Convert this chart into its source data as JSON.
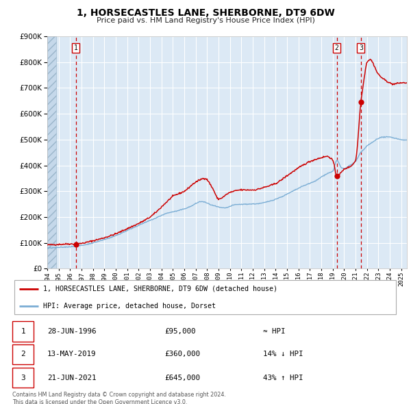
{
  "title": "1, HORSECASTLES LANE, SHERBORNE, DT9 6DW",
  "subtitle": "Price paid vs. HM Land Registry's House Price Index (HPI)",
  "legend_line1": "1, HORSECASTLES LANE, SHERBORNE, DT9 6DW (detached house)",
  "legend_line2": "HPI: Average price, detached house, Dorset",
  "sale1_date": "28-JUN-1996",
  "sale1_price": 95000,
  "sale1_hpi": "≈ HPI",
  "sale2_date": "13-MAY-2019",
  "sale2_price": 360000,
  "sale2_hpi": "14% ↓ HPI",
  "sale3_date": "21-JUN-2021",
  "sale3_price": 645000,
  "sale3_hpi": "43% ↑ HPI",
  "sale1_year": 1996.49,
  "sale2_year": 2019.36,
  "sale3_year": 2021.47,
  "hpi_line_color": "#7aadd4",
  "price_line_color": "#cc0000",
  "dot_color": "#cc0000",
  "dashed_line_color": "#cc0000",
  "bg_color": "#dce9f5",
  "grid_color": "#ffffff",
  "ylim": [
    0,
    900000
  ],
  "xlim_start": 1994.0,
  "xlim_end": 2025.5,
  "footer": "Contains HM Land Registry data © Crown copyright and database right 2024.\nThis data is licensed under the Open Government Licence v3.0."
}
